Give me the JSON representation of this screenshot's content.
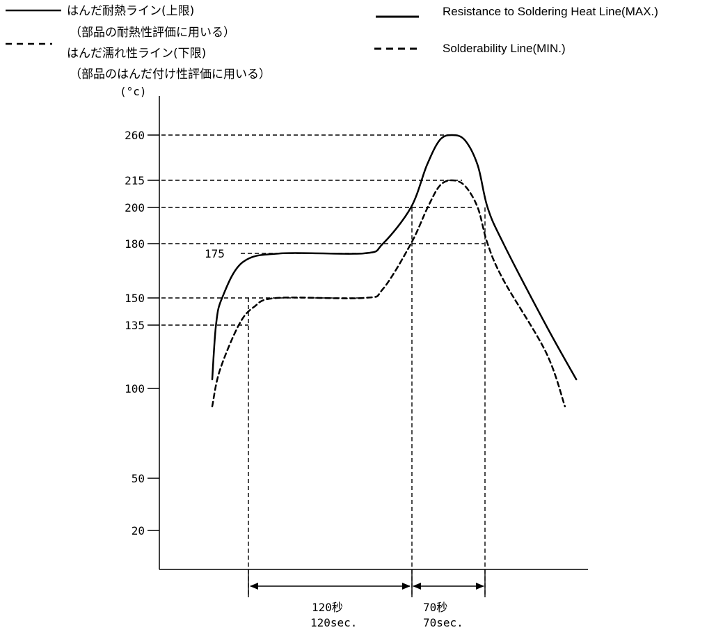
{
  "legend": {
    "jp_max": "はんだ耐熱ライン(上限)",
    "jp_max_note": "（部品の耐熱性評価に用いる）",
    "jp_min": "はんだ濡れ性ライン(下限)",
    "jp_min_note": "（部品のはんだ付け性評価に用いる）",
    "en_max": "Resistance to Soldering Heat Line(MAX.)",
    "en_min": "Solderability Line(MIN.)"
  },
  "chart_data": {
    "type": "line",
    "yunit": "(°c)",
    "y_ticks": [
      20,
      50,
      100,
      135,
      150,
      180,
      200,
      215,
      260
    ],
    "y_ticks_scale": "non-linear (schematic)",
    "annotations": [
      "175"
    ],
    "series": [
      {
        "name": "Resistance to Soldering Heat Line(MAX.)",
        "style": "solid",
        "peak": 260,
        "plateau": 175,
        "points": [
          [
            0,
            105
          ],
          [
            5,
            135
          ],
          [
            13,
            150
          ],
          [
            40,
            170
          ],
          [
            90,
            175
          ],
          [
            200,
            175
          ],
          [
            225,
            180
          ],
          [
            262,
            200
          ],
          [
            283,
            230
          ],
          [
            300,
            255
          ],
          [
            316,
            260
          ],
          [
            333,
            255
          ],
          [
            350,
            230
          ],
          [
            363,
            200
          ],
          [
            384,
            180
          ],
          [
            440,
            135
          ],
          [
            480,
            105
          ]
        ]
      },
      {
        "name": "Solderability Line(MIN.)",
        "style": "dashed",
        "peak": 215,
        "plateau": 150,
        "points": [
          [
            0,
            90
          ],
          [
            10,
            110
          ],
          [
            35,
            135
          ],
          [
            55,
            145
          ],
          [
            85,
            150
          ],
          [
            200,
            150
          ],
          [
            225,
            155
          ],
          [
            262,
            180
          ],
          [
            284,
            200
          ],
          [
            300,
            212
          ],
          [
            316,
            215
          ],
          [
            333,
            212
          ],
          [
            350,
            200
          ],
          [
            363,
            180
          ],
          [
            384,
            160
          ],
          [
            440,
            120
          ],
          [
            465,
            90
          ]
        ]
      }
    ],
    "reference_lines": [
      {
        "y": 260
      },
      {
        "y": 215
      },
      {
        "y": 200
      },
      {
        "y": 180
      },
      {
        "y": 175
      },
      {
        "y": 150
      },
      {
        "y": 135
      }
    ],
    "durations": [
      {
        "label_jp": "120秒",
        "label_en": "120sec."
      },
      {
        "label_jp": "70秒",
        "label_en": "70sec."
      }
    ]
  }
}
